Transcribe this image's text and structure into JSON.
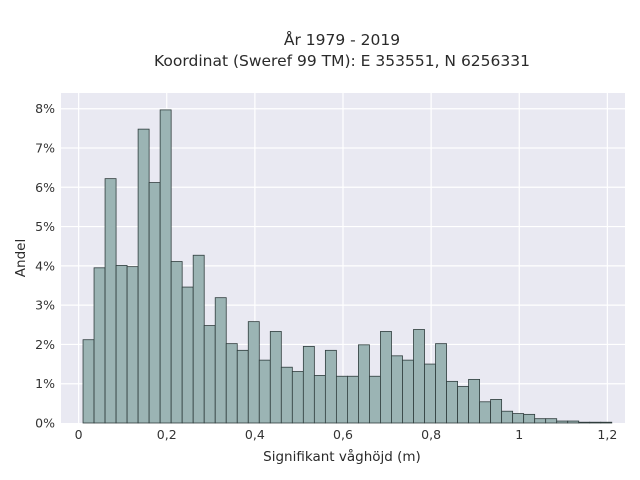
{
  "chart_data": {
    "type": "bar",
    "title_line1": "År 1979 - 2019",
    "title_line2": "Koordinat (Sweref 99 TM): E 353551, N 6256331",
    "xlabel": "Signifikant våghöjd (m)",
    "ylabel": "Andel",
    "xlim": [
      -0.04,
      1.24
    ],
    "ylim": [
      0,
      8.4
    ],
    "grid": true,
    "x_ticks": [
      {
        "value": 0,
        "label": "0"
      },
      {
        "value": 0.2,
        "label": "0,2"
      },
      {
        "value": 0.4,
        "label": "0,4"
      },
      {
        "value": 0.6,
        "label": "0,6"
      },
      {
        "value": 0.8,
        "label": "0,8"
      },
      {
        "value": 1.0,
        "label": "1"
      },
      {
        "value": 1.2,
        "label": "1,2"
      }
    ],
    "y_ticks": [
      {
        "value": 0,
        "label": "0%"
      },
      {
        "value": 1,
        "label": "1%"
      },
      {
        "value": 2,
        "label": "2%"
      },
      {
        "value": 3,
        "label": "3%"
      },
      {
        "value": 4,
        "label": "4%"
      },
      {
        "value": 5,
        "label": "5%"
      },
      {
        "value": 6,
        "label": "6%"
      },
      {
        "value": 7,
        "label": "7%"
      },
      {
        "value": 8,
        "label": "8%"
      }
    ],
    "bin_width": 0.025,
    "bin_start": 0.01,
    "values": [
      2.12,
      3.95,
      6.22,
      4.01,
      3.98,
      7.48,
      6.12,
      7.97,
      4.11,
      3.46,
      4.27,
      2.48,
      3.19,
      2.02,
      1.85,
      2.58,
      1.6,
      2.33,
      1.42,
      1.31,
      1.95,
      1.21,
      1.85,
      1.19,
      1.19,
      1.99,
      1.19,
      2.33,
      1.71,
      1.6,
      2.38,
      1.5,
      2.02,
      1.06,
      0.93,
      1.11,
      0.54,
      0.6,
      0.3,
      0.24,
      0.22,
      0.11,
      0.11,
      0.05,
      0.05,
      0.02,
      0.02,
      0.02
    ]
  }
}
